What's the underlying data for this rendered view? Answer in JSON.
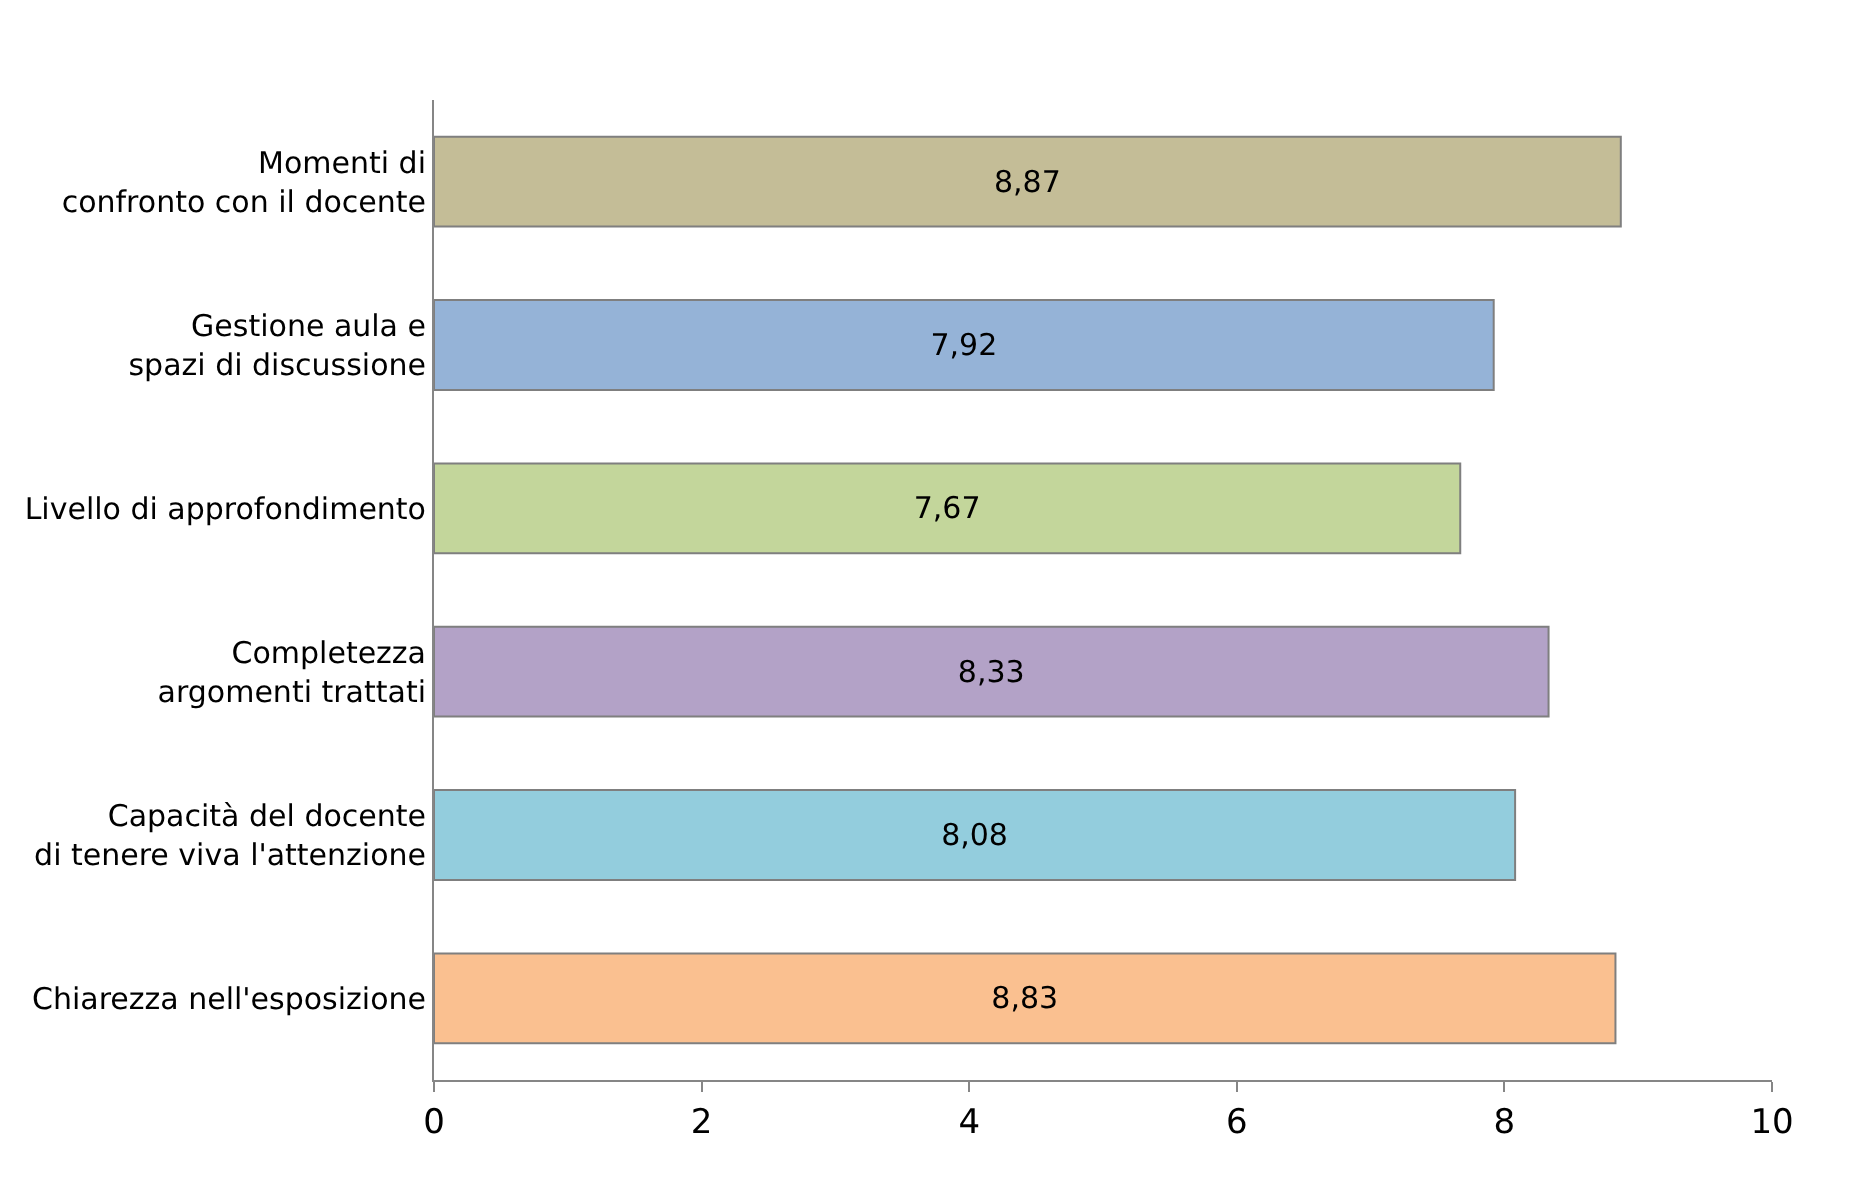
{
  "chart_data": {
    "type": "bar",
    "orientation": "horizontal",
    "categories": [
      "Momenti di\nconfronto con il docente",
      "Gestione aula e\nspazi di discussione",
      "Livello di approfondimento",
      "Completezza\nargomenti trattati",
      "Capacità del docente\ndi tenere viva l'attenzione",
      "Chiarezza nell'esposizione"
    ],
    "values": [
      8.87,
      7.92,
      7.67,
      8.33,
      8.08,
      8.83
    ],
    "colors": [
      "#c4bd97",
      "#95b3d7",
      "#c3d69b",
      "#b3a2c7",
      "#93cddd",
      "#fac090"
    ],
    "xlim": [
      0,
      10
    ],
    "xticks": [
      0,
      2,
      4,
      6,
      8,
      10
    ],
    "value_labels": [
      "8,87",
      "7,92",
      "7,67",
      "8,33",
      "8,08",
      "8,83"
    ],
    "grid": false
  }
}
